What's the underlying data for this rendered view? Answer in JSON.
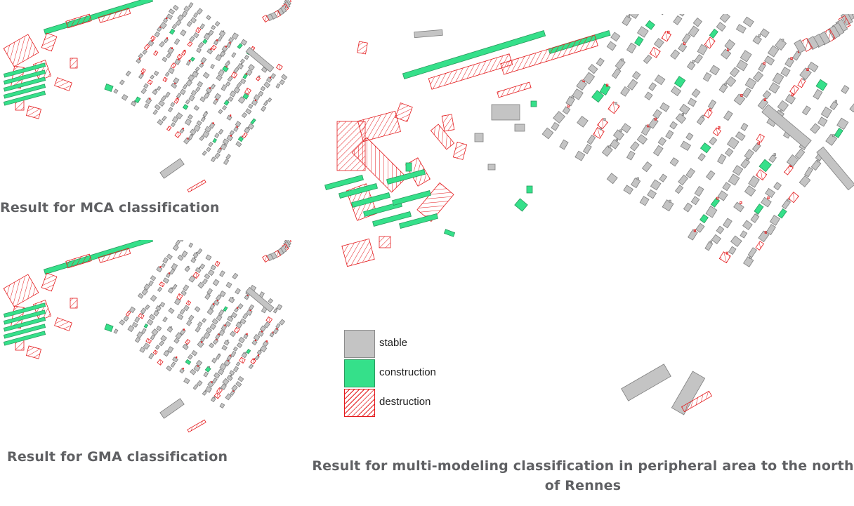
{
  "captions": {
    "mca": "Result for MCA classification",
    "gma": "Result for GMA classification",
    "multi": "Result for multi-modeling classification  in peripheral area to the north of Rennes"
  },
  "legend": {
    "items": [
      {
        "key": "stable",
        "label": "stable",
        "fill": "#c4c4c4",
        "stroke": "#8c8c8c"
      },
      {
        "key": "construction",
        "label": "construction",
        "fill": "#35e08a",
        "stroke": "#2a9a5e"
      },
      {
        "key": "destruction",
        "label": "destruction",
        "fill": "hatched",
        "stroke": "#e41a1c"
      }
    ]
  },
  "colors": {
    "stable_fill": "#c4c4c4",
    "stable_stroke": "#7f7f7f",
    "construction_fill": "#35e08a",
    "construction_stroke": "#2a9a5e",
    "destruction_stroke": "#e41a1c",
    "caption_text": "#5f6063"
  },
  "maps": [
    {
      "key": "mca",
      "panel": "small"
    },
    {
      "key": "gma",
      "panel": "small"
    },
    {
      "key": "multi",
      "panel": "large"
    }
  ]
}
